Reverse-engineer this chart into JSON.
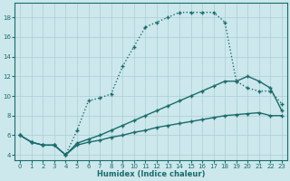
{
  "xlabel": "Humidex (Indice chaleur)",
  "background_color": "#cce8ec",
  "grid_color": "#aacdd4",
  "line_color": "#1a6b6b",
  "xlim": [
    -0.5,
    23.5
  ],
  "ylim": [
    3.5,
    19.5
  ],
  "xticks": [
    0,
    1,
    2,
    3,
    4,
    5,
    6,
    7,
    8,
    9,
    10,
    11,
    12,
    13,
    14,
    15,
    16,
    17,
    18,
    19,
    20,
    21,
    22,
    23
  ],
  "yticks": [
    4,
    6,
    8,
    10,
    12,
    14,
    16,
    18
  ],
  "line1_x": [
    0,
    1,
    2,
    3,
    4,
    5,
    6,
    7,
    8,
    9,
    10,
    11,
    12,
    13,
    14,
    15,
    16,
    17,
    18,
    19,
    20,
    21,
    22,
    23
  ],
  "line1_y": [
    6.0,
    5.3,
    5.0,
    5.0,
    4.0,
    6.5,
    9.5,
    9.8,
    10.2,
    13.0,
    15.0,
    17.0,
    17.5,
    18.0,
    18.5,
    18.5,
    18.5,
    18.5,
    17.5,
    11.5,
    10.8,
    10.5,
    10.5,
    9.2
  ],
  "line2_x": [
    0,
    1,
    2,
    3,
    4,
    5,
    6,
    7,
    8,
    9,
    10,
    11,
    12,
    13,
    14,
    15,
    16,
    17,
    18,
    19,
    20,
    21,
    22,
    23
  ],
  "line2_y": [
    6.0,
    5.3,
    5.0,
    5.0,
    4.0,
    5.2,
    5.6,
    6.0,
    6.5,
    7.0,
    7.5,
    8.0,
    8.5,
    9.0,
    9.5,
    10.0,
    10.5,
    11.0,
    11.5,
    11.5,
    12.0,
    11.5,
    10.8,
    8.5
  ],
  "line3_x": [
    0,
    1,
    2,
    3,
    4,
    5,
    6,
    7,
    8,
    9,
    10,
    11,
    12,
    13,
    14,
    15,
    16,
    17,
    18,
    19,
    20,
    21,
    22,
    23
  ],
  "line3_y": [
    6.0,
    5.3,
    5.0,
    5.0,
    4.0,
    5.0,
    5.3,
    5.5,
    5.8,
    6.0,
    6.3,
    6.5,
    6.8,
    7.0,
    7.2,
    7.4,
    7.6,
    7.8,
    8.0,
    8.1,
    8.2,
    8.3,
    8.0,
    8.0
  ],
  "markersize": 2.5,
  "linewidth": 1.0,
  "linewidth_dotted": 0.8
}
